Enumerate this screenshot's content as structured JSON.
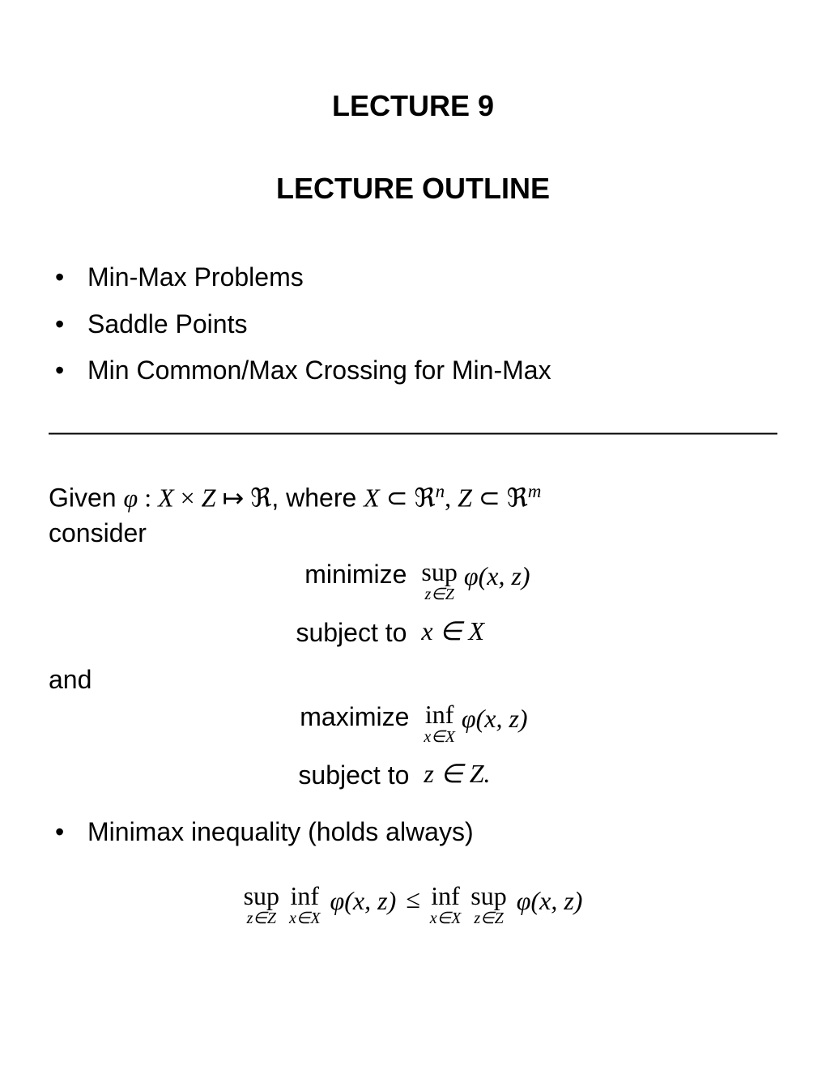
{
  "title": "LECTURE 9",
  "subtitle": "LECTURE OUTLINE",
  "outline_items": [
    "Min-Max Problems",
    "Saddle Points",
    "Min Common/Max Crossing for Min-Max"
  ],
  "dashline": "——————————————————————————————",
  "given_pre": "Given ",
  "phi": "φ",
  "colon": " : ",
  "X": "X",
  "times": " × ",
  "Z": "Z",
  "mapsto": " ↦ ",
  "Real": "ℜ",
  "where": ", where ",
  "subset": " ⊂ ",
  "sup_n": "n",
  "comma": ", ",
  "sup_m": "m",
  "consider": "consider",
  "minimize_label": "minimize",
  "subject_label": "subject to",
  "maximize_label": "maximize",
  "sup_text": "sup",
  "inf_text": "inf",
  "zinZ": "z∈Z",
  "xinX": "x∈X",
  "phixz": "φ(x, z)",
  "x_in_X_expr": "x ∈ X",
  "z_in_Z_expr": "z ∈ Z.",
  "and_text": "and",
  "ineq_bullet": "Minimax inequality (holds always)",
  "le": "≤",
  "colors": {
    "text": "#000000",
    "background": "#ffffff"
  },
  "fonts": {
    "sans": "Helvetica",
    "serif": "Times New Roman",
    "title_size_pt": 27,
    "body_size_pt": 24
  }
}
